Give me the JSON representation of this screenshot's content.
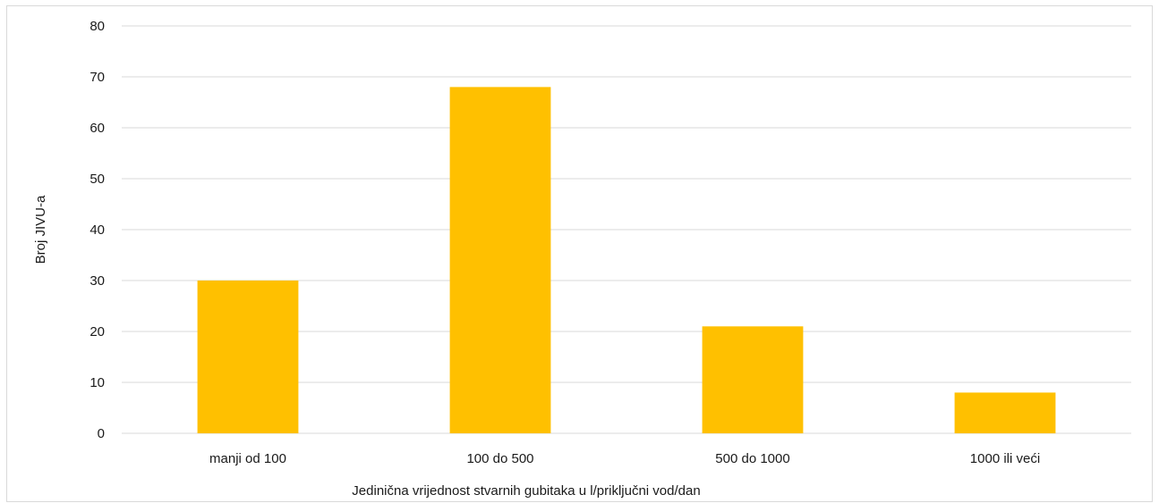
{
  "chart_data": {
    "type": "bar",
    "title": "",
    "xlabel": "Jedinična vrijednost stvarnih gubitaka u l/priključni vod/dan",
    "ylabel": "Broj JIVU-a",
    "categories": [
      "manji od 100",
      "100 do 500",
      "500 do 1000",
      "1000 ili veći"
    ],
    "values": [
      30,
      68,
      21,
      8
    ],
    "ylim": [
      0,
      80
    ],
    "yticks": [
      "0",
      "10",
      "20",
      "30",
      "40",
      "50",
      "60",
      "70",
      "80"
    ],
    "grid": true,
    "legend": "none",
    "bar_color": "#FFC000",
    "grid_color": "#d9d9d9"
  }
}
